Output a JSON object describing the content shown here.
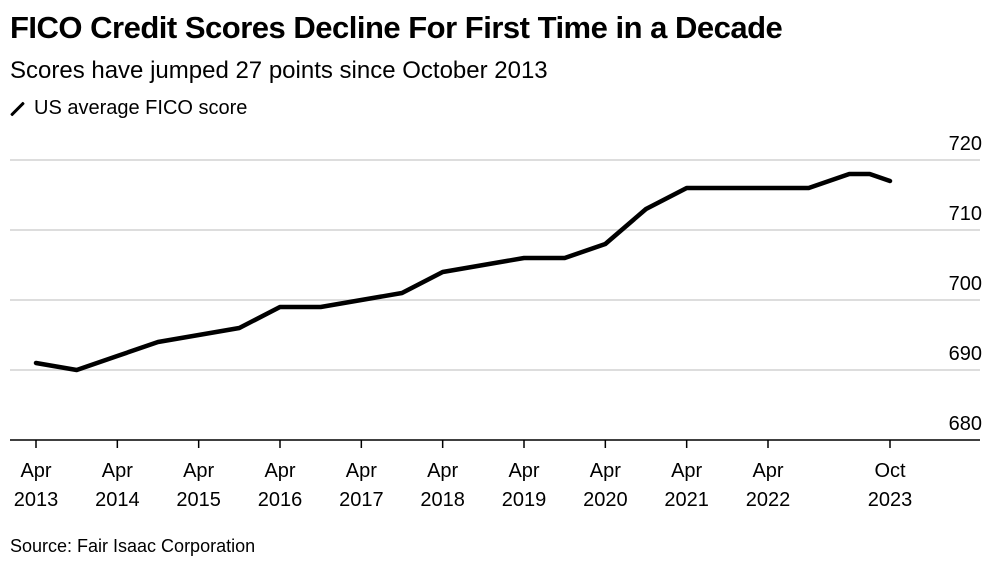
{
  "title": "FICO Credit Scores Decline For First Time in a Decade",
  "subtitle": "Scores have jumped 27 points since October 2013",
  "legend": {
    "label": "US average FICO score",
    "icon": "line-swatch-icon"
  },
  "source": "Source: Fair Isaac Corporation",
  "chart_data": {
    "type": "line",
    "series": [
      {
        "name": "US average FICO score",
        "color": "#000000",
        "x": [
          "2013-04",
          "2013-10",
          "2014-04",
          "2014-10",
          "2015-04",
          "2015-10",
          "2016-04",
          "2016-10",
          "2017-04",
          "2017-10",
          "2018-04",
          "2018-10",
          "2019-04",
          "2019-10",
          "2020-04",
          "2020-10",
          "2021-04",
          "2021-10",
          "2022-04",
          "2022-10",
          "2023-04",
          "2023-07",
          "2023-10"
        ],
        "values": [
          691,
          690,
          692,
          694,
          695,
          696,
          699,
          699,
          700,
          701,
          704,
          705,
          706,
          706,
          708,
          713,
          716,
          716,
          716,
          716,
          718,
          718,
          717
        ]
      }
    ],
    "ylim": [
      680,
      720
    ],
    "yticks": [
      680,
      690,
      700,
      710,
      720
    ],
    "xticks": [
      {
        "date": "2013-04",
        "month": "Apr",
        "year": "2013"
      },
      {
        "date": "2014-04",
        "month": "Apr",
        "year": "2014"
      },
      {
        "date": "2015-04",
        "month": "Apr",
        "year": "2015"
      },
      {
        "date": "2016-04",
        "month": "Apr",
        "year": "2016"
      },
      {
        "date": "2017-04",
        "month": "Apr",
        "year": "2017"
      },
      {
        "date": "2018-04",
        "month": "Apr",
        "year": "2018"
      },
      {
        "date": "2019-04",
        "month": "Apr",
        "year": "2019"
      },
      {
        "date": "2020-04",
        "month": "Apr",
        "year": "2020"
      },
      {
        "date": "2021-04",
        "month": "Apr",
        "year": "2021"
      },
      {
        "date": "2022-04",
        "month": "Apr",
        "year": "2022"
      },
      {
        "date": "2023-10",
        "month": "Oct",
        "year": "2023"
      }
    ],
    "y_axis_side": "right",
    "grid": true,
    "legend_position": "top-left",
    "gridline_color": "#dddddd"
  }
}
